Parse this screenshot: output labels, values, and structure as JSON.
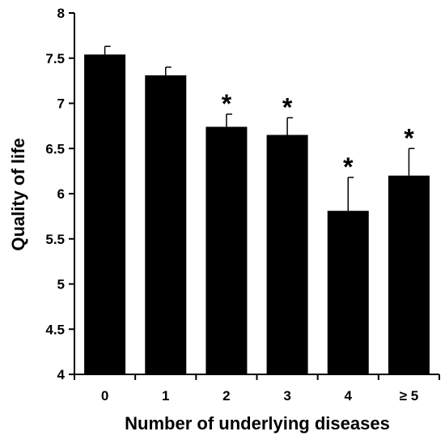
{
  "chart_data": {
    "type": "bar",
    "xlabel": "Number of underlying diseases",
    "ylabel": "Quality of life",
    "categories": [
      "0",
      "1",
      "2",
      "3",
      "4",
      "≥ 5"
    ],
    "values": [
      7.54,
      7.31,
      6.74,
      6.65,
      5.81,
      6.2
    ],
    "errors": [
      0.09,
      0.09,
      0.14,
      0.19,
      0.37,
      0.3
    ],
    "significance": [
      "",
      "",
      "*",
      "*",
      "*",
      "*"
    ],
    "ylim": [
      4,
      8
    ],
    "yticks": [
      "4",
      "4.5",
      "5",
      "5.5",
      "6",
      "6.5",
      "7",
      "7.5",
      "8"
    ],
    "grid": false,
    "bar_color": "#000000"
  }
}
